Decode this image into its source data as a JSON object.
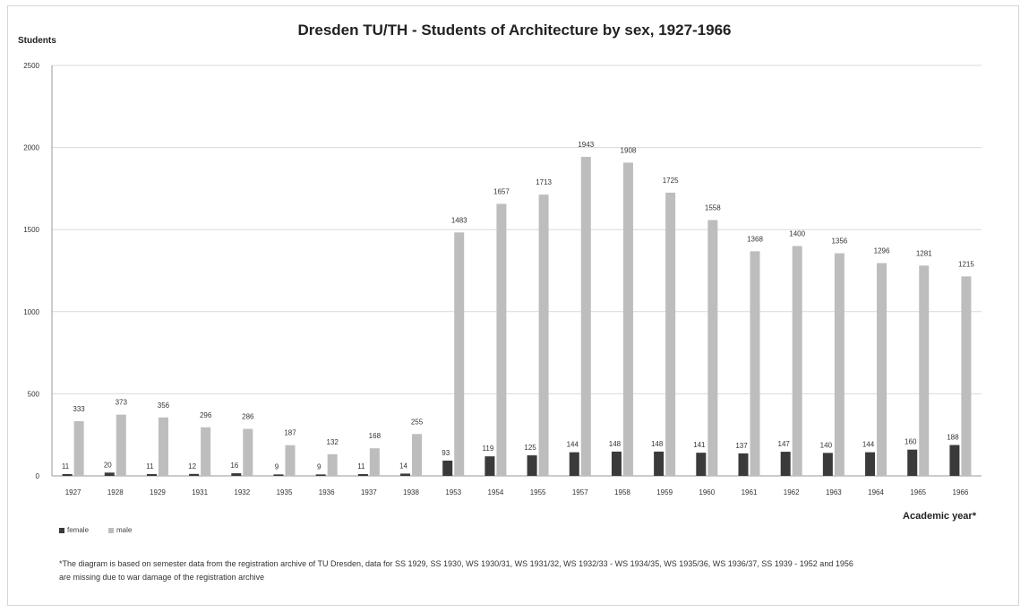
{
  "chart_data": {
    "type": "bar",
    "title": "Dresden TU/TH - Students of Architecture by sex, 1927-1966",
    "ylabel": "Students",
    "xlabel": "Academic year*",
    "ylim": [
      0,
      2500
    ],
    "yticks": [
      0,
      500,
      1000,
      1500,
      2000,
      2500
    ],
    "grid": true,
    "legend_position": "bottom-left",
    "categories": [
      "1927",
      "1928",
      "1929",
      "1931",
      "1932",
      "1935",
      "1936",
      "1937",
      "1938",
      "1953",
      "1954",
      "1955",
      "1957",
      "1958",
      "1959",
      "1960",
      "1961",
      "1962",
      "1963",
      "1964",
      "1965",
      "1966"
    ],
    "series": [
      {
        "name": "female",
        "color": "#3a3a3a",
        "values": [
          11,
          20,
          11,
          12,
          16,
          9,
          9,
          11,
          14,
          93,
          119,
          125,
          144,
          148,
          148,
          141,
          137,
          147,
          140,
          144,
          160,
          188
        ]
      },
      {
        "name": "male",
        "color": "#bdbdbd",
        "values": [
          333,
          373,
          356,
          296,
          286,
          187,
          132,
          168,
          255,
          1483,
          1657,
          1713,
          1943,
          1908,
          1725,
          1558,
          1368,
          1400,
          1356,
          1296,
          1281,
          1215
        ]
      }
    ],
    "footnote": "*The diagram is based on semester data from the registration archive of TU Dresden, data for SS 1929, SS 1930, WS 1930/31, WS 1931/32, WS 1932/33 - WS 1934/35, WS 1935/36, WS 1936/37, SS 1939 - 1952 and 1956 are missing due to war damage of the registration archive"
  }
}
